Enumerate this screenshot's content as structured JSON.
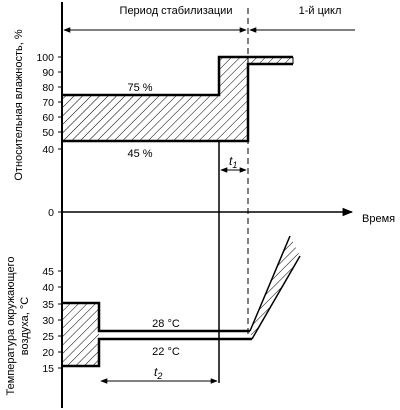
{
  "labels": {
    "stabilization_period": "Период стабилизации",
    "first_cycle": "1-й цикл",
    "time_axis": "Время",
    "humidity_axis": "Относительная влажность, %",
    "temperature_axis_line1": "Температура окружающего",
    "temperature_axis_line2": "воздуха, °С",
    "t1": "t",
    "t1_sub": "1",
    "t2": "t",
    "t2_sub": "2",
    "humidity_upper": "75 %",
    "humidity_lower": "45 %",
    "temperature_upper": "28 °С",
    "temperature_lower": "22 °С"
  },
  "humidity_ticks": [
    "100",
    "90",
    "80",
    "70",
    "60",
    "50",
    "40"
  ],
  "zero_tick": "0",
  "temperature_ticks": [
    "45",
    "40",
    "35",
    "30",
    "25",
    "20",
    "15"
  ]
}
